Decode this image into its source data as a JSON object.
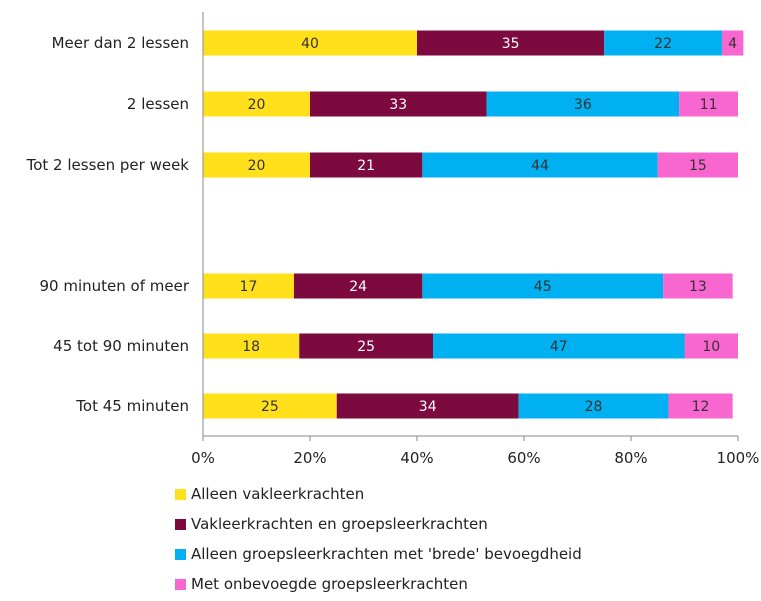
{
  "chart_data": {
    "type": "bar",
    "orientation": "horizontal",
    "stacked": true,
    "categories": [
      "Meer dan 2 lessen",
      "2 lessen",
      "Tot 2 lessen per week",
      "",
      "90 minuten of meer",
      "45 tot 90 minuten",
      "Tot 45 minuten"
    ],
    "series": [
      {
        "name": "Alleen vakleerkrachten",
        "color": "#FFE01B",
        "label_color": "#333333",
        "values": [
          40,
          20,
          20,
          null,
          17,
          18,
          25
        ]
      },
      {
        "name": "Vakleerkrachten en groepsleerkrachten",
        "color": "#7C0A3E",
        "label_color": "#ffffff",
        "values": [
          35,
          33,
          21,
          null,
          24,
          25,
          34
        ]
      },
      {
        "name": "Alleen groepsleerkrachten met 'brede' bevoegdheid",
        "color": "#00B0F0",
        "label_color": "#333333",
        "values": [
          22,
          36,
          44,
          null,
          45,
          47,
          28
        ]
      },
      {
        "name": "Met onbevoegde groepsleerkrachten",
        "color": "#F866CF",
        "label_color": "#333333",
        "values": [
          4,
          11,
          15,
          null,
          13,
          10,
          12
        ]
      }
    ],
    "xlim": [
      0,
      100
    ],
    "x_ticks": [
      "0%",
      "20%",
      "40%",
      "60%",
      "80%",
      "100%"
    ],
    "grid": false,
    "legend_position": "bottom-left"
  }
}
